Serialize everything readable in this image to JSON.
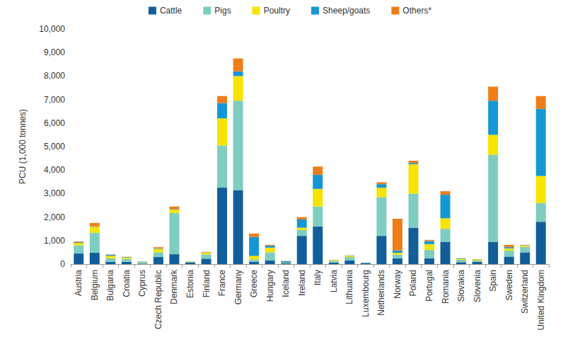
{
  "chart_data": {
    "type": "bar",
    "stacked": true,
    "grid": false,
    "legend": "top",
    "y_label": "PCU (1,000 tonnes)",
    "categories": [
      "Austria",
      "Belgium",
      "Bulgaria",
      "Croatia",
      "Cyprus",
      "Czech Republic",
      "Denmark",
      "Estonia",
      "Finland",
      "France",
      "Germany",
      "Greece",
      "Hungary",
      "Iceland",
      "Ireland",
      "Italy",
      "Latvia",
      "Lithuania",
      "Luxembourg",
      "Netherlands",
      "Norway",
      "Poland",
      "Portugal",
      "Romania",
      "Slovakia",
      "Slovenia",
      "Spain",
      "Sweden",
      "Switzerland",
      "United Kingdom"
    ],
    "ylim": [
      0,
      10000
    ],
    "yticks": [
      0,
      {
        "value": 1000,
        "label": "1,000"
      },
      {
        "value": 2000,
        "label": "2,000"
      },
      {
        "value": 3000,
        "label": "3,000"
      },
      {
        "value": 4000,
        "label": "4,000"
      },
      {
        "value": 5000,
        "label": "5,000"
      },
      {
        "value": 6000,
        "label": "6,000"
      },
      {
        "value": 7000,
        "label": "7,000"
      },
      {
        "value": 8000,
        "label": "8,000"
      },
      {
        "value": 9000,
        "label": "9,000"
      },
      {
        "value": 10000,
        "label": "10,000"
      }
    ],
    "series": [
      {
        "name": "Cattle",
        "color": "#115e9b",
        "values": [
          450,
          480,
          100,
          100,
          20,
          300,
          420,
          60,
          230,
          3250,
          3150,
          100,
          150,
          30,
          1200,
          1600,
          70,
          150,
          50,
          1200,
          250,
          1550,
          250,
          950,
          80,
          100,
          950,
          320,
          500,
          1800
        ]
      },
      {
        "name": "Pigs",
        "color": "#7ecdc0",
        "values": [
          350,
          850,
          150,
          120,
          50,
          200,
          1750,
          40,
          180,
          1800,
          3800,
          100,
          350,
          20,
          250,
          850,
          50,
          150,
          10,
          1650,
          150,
          1450,
          350,
          550,
          100,
          50,
          3700,
          250,
          240,
          800
        ]
      },
      {
        "name": "Poultry",
        "color": "#f7e400",
        "values": [
          100,
          260,
          100,
          60,
          15,
          150,
          150,
          10,
          80,
          1150,
          1050,
          150,
          200,
          10,
          100,
          750,
          30,
          50,
          2,
          400,
          80,
          1250,
          250,
          450,
          50,
          40,
          850,
          100,
          50,
          1150
        ]
      },
      {
        "name": "Sheep/goats",
        "color": "#1597d5",
        "values": [
          30,
          20,
          40,
          20,
          20,
          20,
          20,
          5,
          10,
          650,
          200,
          800,
          80,
          60,
          350,
          600,
          10,
          10,
          2,
          150,
          100,
          50,
          130,
          1000,
          20,
          10,
          1450,
          50,
          15,
          2850
        ]
      },
      {
        "name": "Others*",
        "color": "#ef7d1a",
        "values": [
          30,
          140,
          20,
          10,
          5,
          50,
          110,
          5,
          20,
          300,
          550,
          150,
          40,
          10,
          100,
          350,
          10,
          10,
          2,
          80,
          1350,
          100,
          50,
          150,
          10,
          10,
          600,
          100,
          15,
          550
        ]
      }
    ]
  }
}
